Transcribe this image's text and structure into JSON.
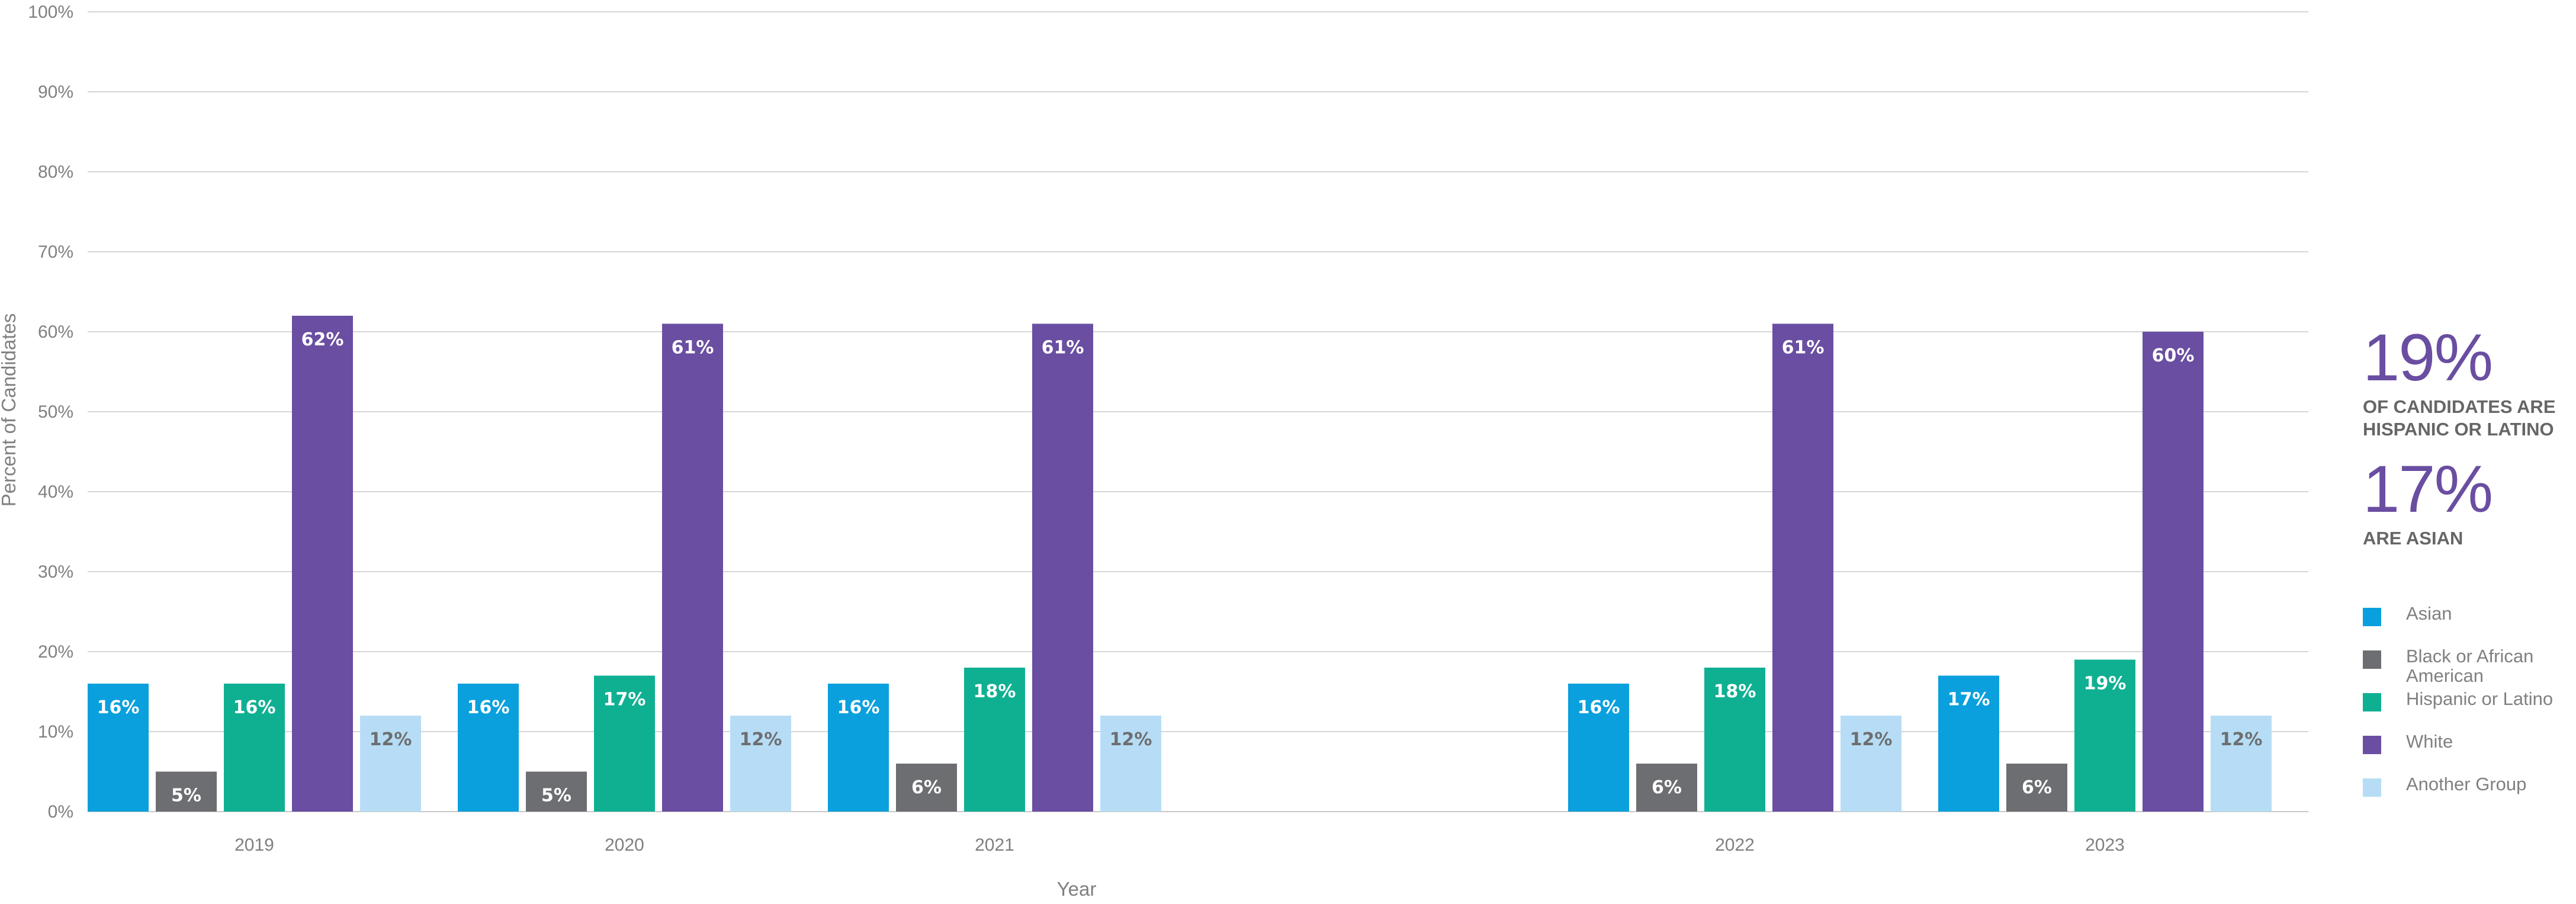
{
  "chart_data": {
    "type": "bar",
    "xlabel": "Year",
    "ylabel": "Percent of Candidates",
    "ylim": [
      0,
      100
    ],
    "yticks": [
      "0%",
      "10%",
      "20%",
      "30%",
      "40%",
      "50%",
      "60%",
      "70%",
      "80%",
      "90%",
      "100%"
    ],
    "categories": [
      "2019",
      "2020",
      "2021",
      "",
      "2022",
      "2023"
    ],
    "grid": true,
    "legend_position": "right",
    "series": [
      {
        "name": "Asian",
        "color": "#0aa0dd",
        "label_color": "#ffffff",
        "values": [
          16,
          16,
          16,
          null,
          16,
          17
        ],
        "labels": [
          "16%",
          "16%",
          "16%",
          "",
          "16%",
          "17%"
        ]
      },
      {
        "name": "Black or African American",
        "color": "#6d6e71",
        "label_color": "#ffffff",
        "values": [
          5,
          5,
          6,
          null,
          6,
          6
        ],
        "labels": [
          "5%",
          "5%",
          "6%",
          "",
          "6%",
          "6%"
        ]
      },
      {
        "name": "Hispanic or Latino",
        "color": "#0fb092",
        "label_color": "#ffffff",
        "values": [
          16,
          17,
          18,
          null,
          18,
          19
        ],
        "labels": [
          "16%",
          "17%",
          "18%",
          "",
          "18%",
          "19%"
        ]
      },
      {
        "name": "White",
        "color": "#6a4ea1",
        "label_color": "#ffffff",
        "values": [
          62,
          61,
          61,
          null,
          61,
          60
        ],
        "labels": [
          "62%",
          "61%",
          "61%",
          "",
          "61%",
          "60%"
        ]
      },
      {
        "name": "Another Group",
        "color": "#b6ddf5",
        "label_color": "#6d6e71",
        "values": [
          12,
          12,
          12,
          null,
          12,
          12
        ],
        "labels": [
          "12%",
          "12%",
          "12%",
          "",
          "12%",
          "12%"
        ]
      }
    ]
  },
  "callouts": [
    {
      "value": "19%",
      "caption": [
        "OF CANDIDATES ARE",
        "HISPANIC OR LATINO"
      ]
    },
    {
      "value": "17%",
      "caption": [
        "ARE ASIAN"
      ]
    }
  ]
}
